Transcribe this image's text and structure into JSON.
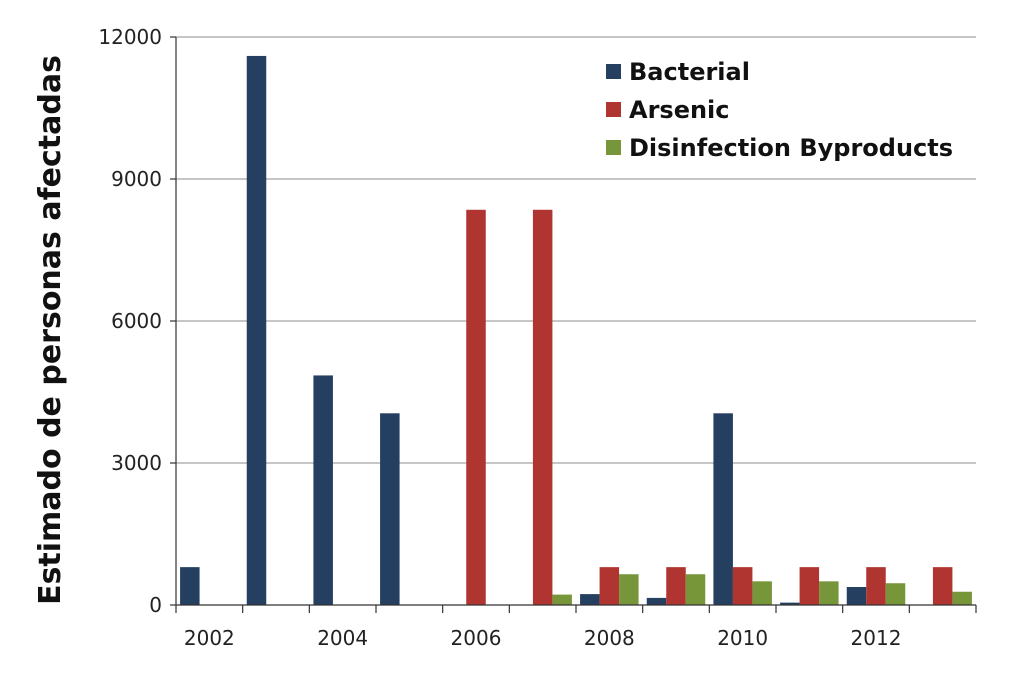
{
  "chart_data": {
    "type": "bar",
    "title": "",
    "xlabel": "",
    "ylabel": "Estimado de personas afectadas",
    "ylim": [
      0,
      12000
    ],
    "yticks": [
      0,
      3000,
      6000,
      9000,
      12000
    ],
    "grid": true,
    "legend_position": "top-right",
    "categories": [
      "2002",
      "2003",
      "2004",
      "2005",
      "2006",
      "2007",
      "2008",
      "2009",
      "2010",
      "2011",
      "2012",
      "2013"
    ],
    "x_tick_labels": [
      "2002",
      "2004",
      "2006",
      "2008",
      "2010",
      "2012"
    ],
    "series": [
      {
        "name": "Bacterial",
        "color": "#243f60",
        "values": [
          800,
          11600,
          4850,
          4050,
          0,
          0,
          230,
          150,
          4050,
          50,
          380,
          0
        ]
      },
      {
        "name": "Arsenic",
        "color": "#b03531",
        "values": [
          0,
          0,
          0,
          0,
          8350,
          8350,
          800,
          800,
          800,
          800,
          800,
          800
        ]
      },
      {
        "name": "Disinfection Byproducts",
        "color": "#77963a",
        "values": [
          0,
          0,
          0,
          0,
          0,
          220,
          650,
          650,
          500,
          500,
          460,
          280
        ]
      }
    ]
  }
}
